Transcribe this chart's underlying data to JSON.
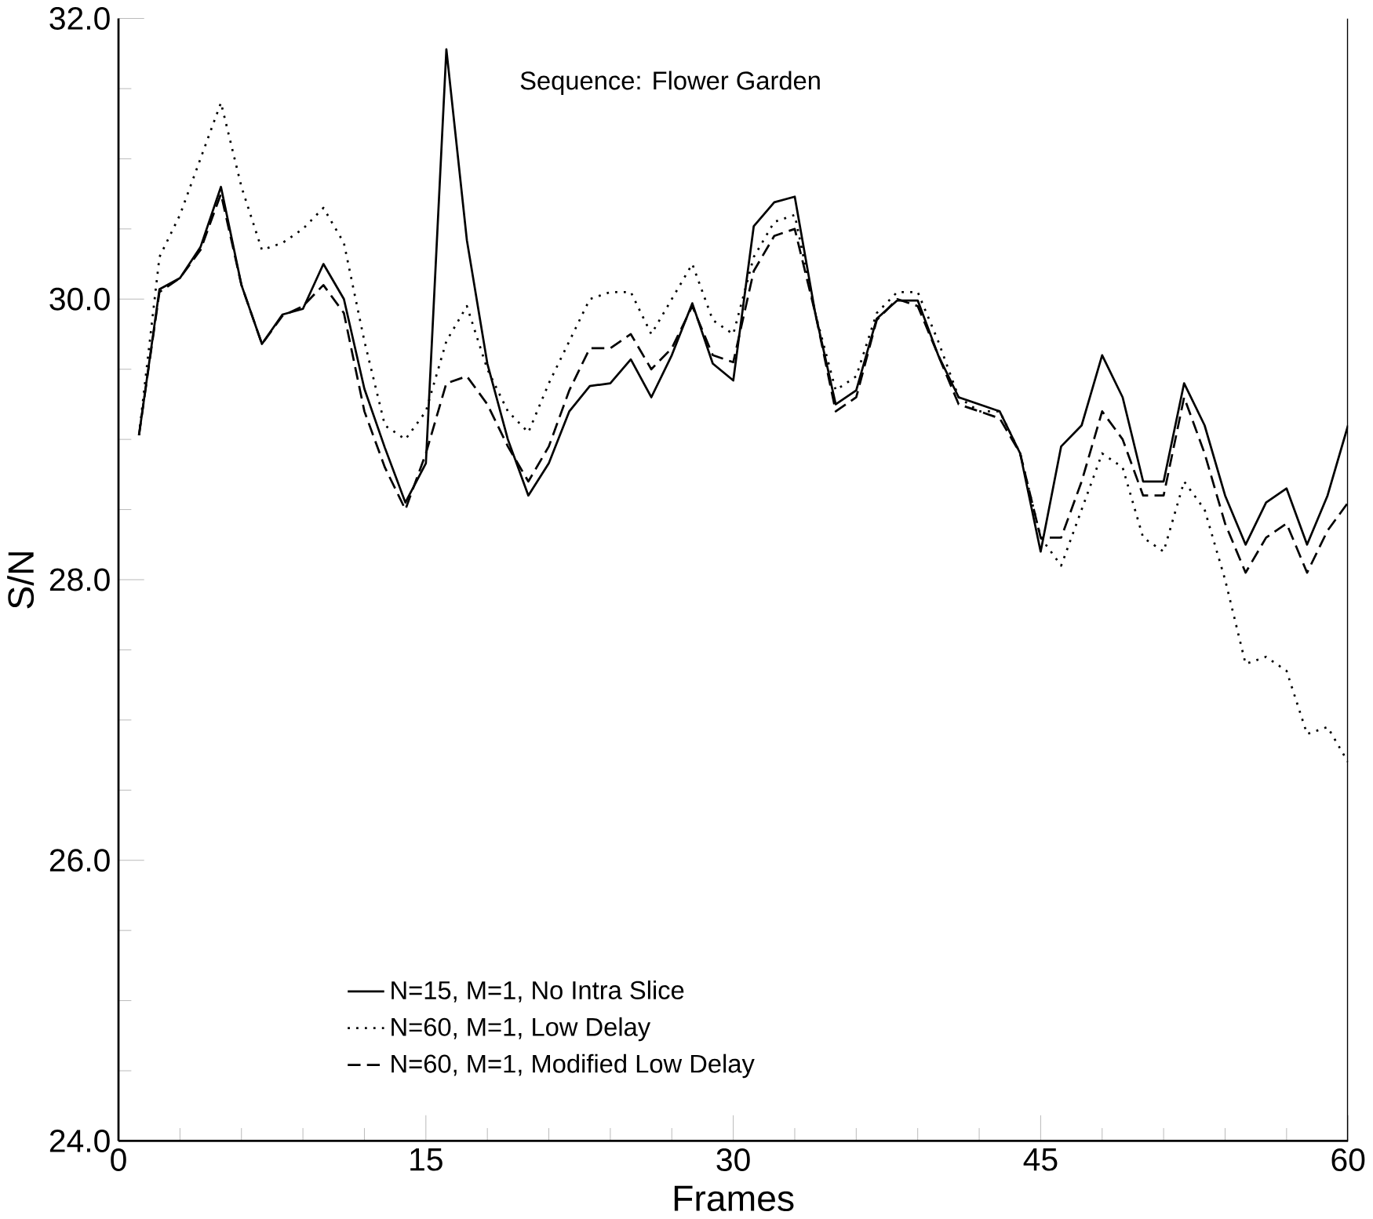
{
  "chart_data": {
    "type": "line",
    "xlabel": "Frames",
    "ylabel": "S/N",
    "annotations": [
      "Sequence: Flower Garden"
    ],
    "x": [
      1,
      2,
      3,
      4,
      5,
      6,
      7,
      8,
      9,
      10,
      11,
      12,
      13,
      14,
      15,
      16,
      17,
      18,
      19,
      20,
      21,
      22,
      23,
      24,
      25,
      26,
      27,
      28,
      29,
      30,
      31,
      32,
      33,
      34,
      35,
      36,
      37,
      38,
      39,
      40,
      41,
      42,
      43,
      44,
      45,
      46,
      47,
      48,
      49,
      50,
      51,
      52,
      53,
      54,
      55,
      56,
      57,
      58,
      59,
      60
    ],
    "series": [
      {
        "name": "N=15, M=1, No Intra Slice",
        "color": "#000000",
        "line_style": "solid",
        "values": [
          29.03,
          30.07,
          30.15,
          30.37,
          30.8,
          30.1,
          29.68,
          29.89,
          29.93,
          30.25,
          30.0,
          29.36,
          28.94,
          28.55,
          28.83,
          31.78,
          30.42,
          29.54,
          29.0,
          28.6,
          28.83,
          29.2,
          29.38,
          29.4,
          29.57,
          29.3,
          29.6,
          29.97,
          29.54,
          29.42,
          30.52,
          30.69,
          30.73,
          29.9,
          29.25,
          29.35,
          29.86,
          29.99,
          29.99,
          29.6,
          29.3,
          29.25,
          29.2,
          28.9,
          28.2,
          28.95,
          29.1,
          29.6,
          29.3,
          28.7,
          28.7,
          29.4,
          29.1,
          28.6,
          28.25,
          28.55,
          28.65,
          28.25,
          28.6,
          29.1
        ]
      },
      {
        "name": "N=60, M=1, Low Delay",
        "color": "#000000",
        "line_style": "dotted",
        "values": [
          29.03,
          30.3,
          30.6,
          31.0,
          31.4,
          30.8,
          30.35,
          30.4,
          30.5,
          30.65,
          30.4,
          29.7,
          29.1,
          29.0,
          29.2,
          29.7,
          29.95,
          29.5,
          29.2,
          29.05,
          29.4,
          29.7,
          30.0,
          30.05,
          30.05,
          29.75,
          30.0,
          30.25,
          29.85,
          29.75,
          30.3,
          30.55,
          30.6,
          29.9,
          29.35,
          29.45,
          29.9,
          30.05,
          30.05,
          29.7,
          29.3,
          29.2,
          29.2,
          28.9,
          28.3,
          28.1,
          28.5,
          28.9,
          28.8,
          28.3,
          28.2,
          28.7,
          28.5,
          28.0,
          27.4,
          27.45,
          27.35,
          26.9,
          26.95,
          26.7
        ]
      },
      {
        "name": "N=60, M=1, Modified Low Delay",
        "color": "#000000",
        "line_style": "dashed",
        "values": [
          29.03,
          30.05,
          30.15,
          30.35,
          30.75,
          30.1,
          29.68,
          29.88,
          29.95,
          30.1,
          29.9,
          29.2,
          28.8,
          28.5,
          28.9,
          29.4,
          29.45,
          29.25,
          28.95,
          28.7,
          28.95,
          29.35,
          29.65,
          29.65,
          29.75,
          29.5,
          29.65,
          29.95,
          29.6,
          29.55,
          30.2,
          30.45,
          30.5,
          29.9,
          29.2,
          29.3,
          29.85,
          30.0,
          29.95,
          29.6,
          29.25,
          29.2,
          29.15,
          28.9,
          28.3,
          28.3,
          28.7,
          29.2,
          29.0,
          28.6,
          28.6,
          29.3,
          28.9,
          28.4,
          28.05,
          28.3,
          28.4,
          28.05,
          28.35,
          28.55
        ]
      }
    ],
    "xlim": [
      0,
      60
    ],
    "xticks": [
      0,
      15,
      30,
      45,
      60
    ],
    "ylim": [
      24,
      32
    ],
    "yticks": [
      {
        "value": 24,
        "label": "24.0"
      },
      {
        "value": 26,
        "label": "26.0"
      },
      {
        "value": 28,
        "label": "28.0"
      },
      {
        "value": 30,
        "label": "30.0"
      },
      {
        "value": 32,
        "label": "32.0"
      }
    ],
    "grid": false,
    "legend": "bottom",
    "marker": "none"
  }
}
